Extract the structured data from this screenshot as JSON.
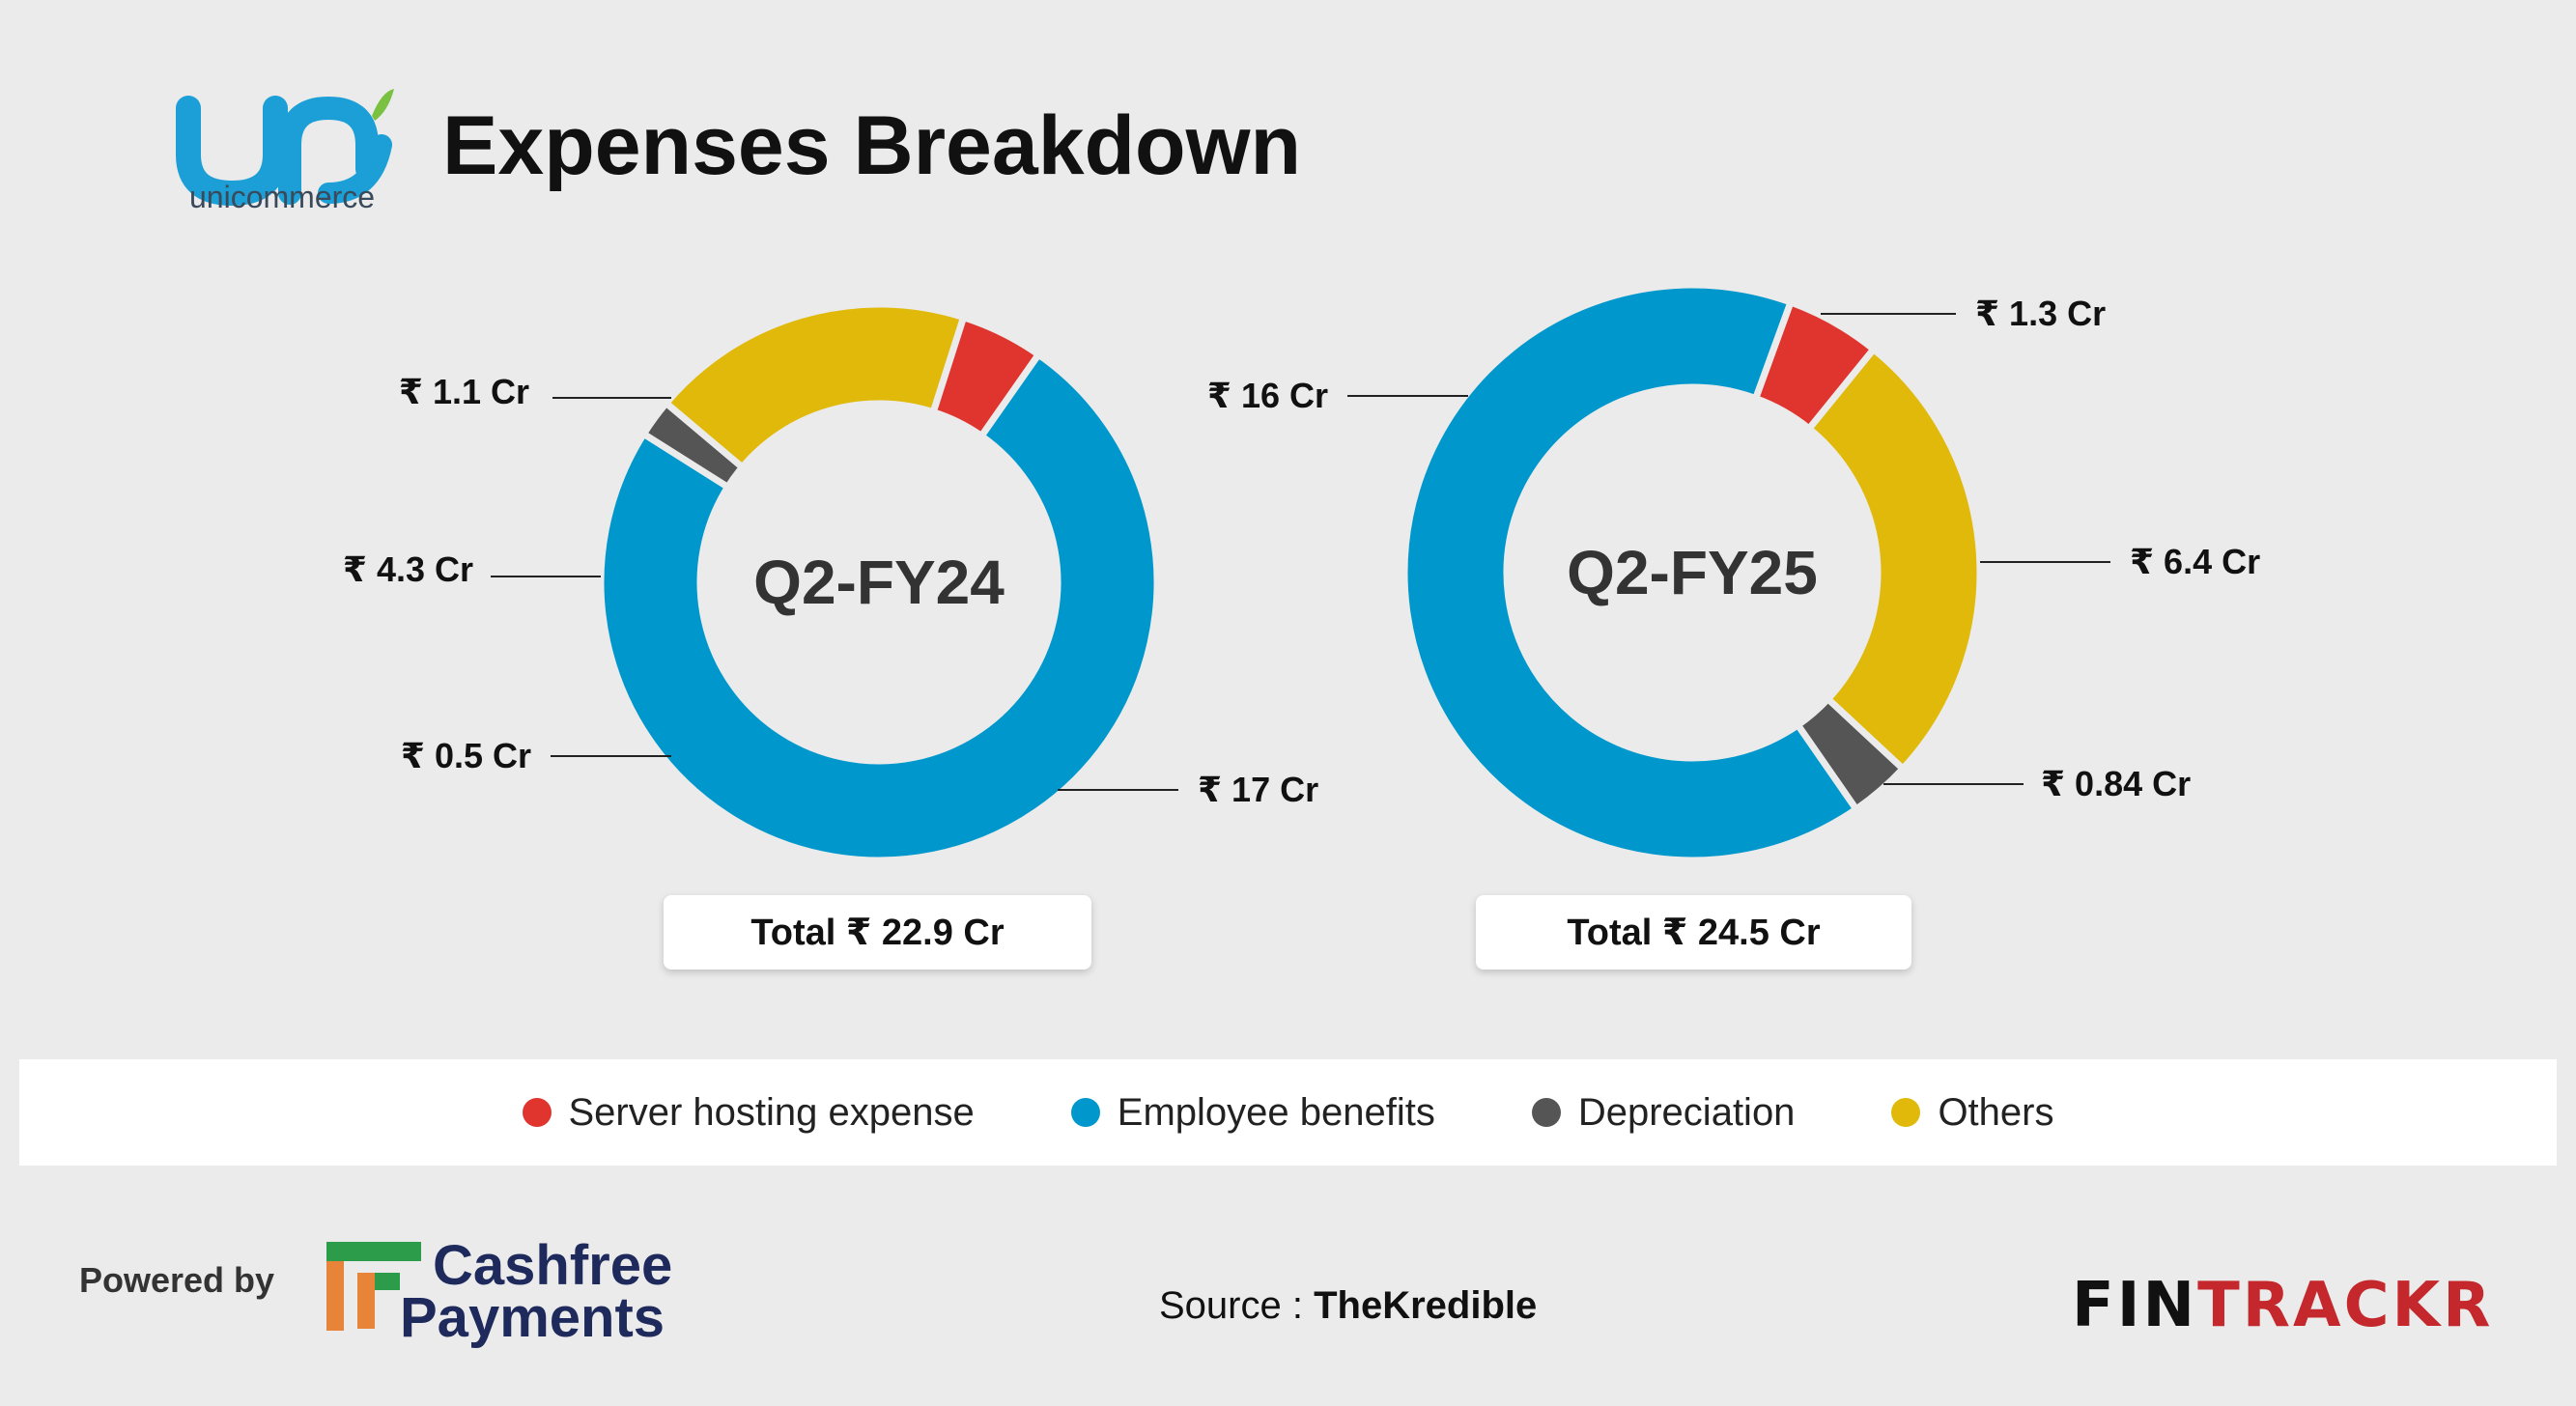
{
  "header": {
    "brand_name": "unicommerce",
    "title": "Expenses Breakdown"
  },
  "chart_data": [
    {
      "type": "pie",
      "title": "Q2-FY24",
      "unit": "₹ Cr",
      "series": [
        {
          "name": "Employee benefits",
          "value": 17,
          "label": "₹ 17 Cr",
          "color": "#0098cc"
        },
        {
          "name": "Depreciation",
          "value": 0.5,
          "label": "₹ 0.5 Cr",
          "color": "#555555"
        },
        {
          "name": "Others",
          "value": 4.3,
          "label": "₹ 4.3 Cr",
          "color": "#e0b90b"
        },
        {
          "name": "Server hosting expense",
          "value": 1.1,
          "label": "₹ 1.1 Cr",
          "color": "#e0352e"
        }
      ],
      "total_label": "Total ₹ 22.9 Cr"
    },
    {
      "type": "pie",
      "title": "Q2-FY25",
      "unit": "₹ Cr",
      "series": [
        {
          "name": "Server hosting expense",
          "value": 1.3,
          "label": "₹ 1.3 Cr",
          "color": "#e0352e"
        },
        {
          "name": "Others",
          "value": 6.4,
          "label": "₹ 6.4 Cr",
          "color": "#e0b90b"
        },
        {
          "name": "Depreciation",
          "value": 0.84,
          "label": "₹ 0.84 Cr",
          "color": "#555555"
        },
        {
          "name": "Employee benefits",
          "value": 16,
          "label": "₹ 16 Cr",
          "color": "#0098cc"
        }
      ],
      "total_label": "Total ₹ 24.5 Cr"
    }
  ],
  "legend": [
    {
      "label": "Server hosting expense",
      "color": "#e0352e"
    },
    {
      "label": "Employee benefits",
      "color": "#0098cc"
    },
    {
      "label": "Depreciation",
      "color": "#555555"
    },
    {
      "label": "Others",
      "color": "#e0b90b"
    }
  ],
  "footer": {
    "powered_by": "Powered by",
    "sponsor_line1": "Cashfree",
    "sponsor_line2": "Payments",
    "source_label": "Source :",
    "source_name": "TheKredible",
    "brand_part1": "FIN",
    "brand_part2": "TRACKR"
  },
  "colors": {
    "background": "#ebebeb",
    "employee": "#0098cc",
    "server": "#e0352e",
    "depreciation": "#555555",
    "others": "#e0b90b",
    "fintrackr_red": "#c4282c"
  }
}
